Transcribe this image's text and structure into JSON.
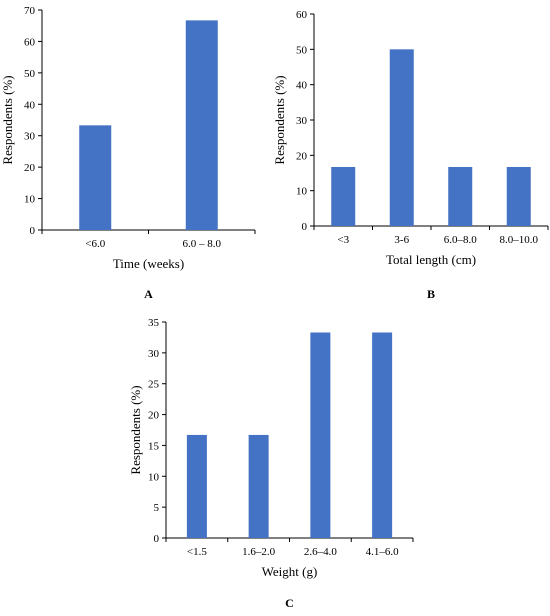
{
  "chart_data": [
    {
      "type": "bar",
      "panel_label": "A",
      "categories": [
        "<6.0",
        "6.0 – 8.0"
      ],
      "values": [
        33.3,
        66.7
      ],
      "xlabel": "Time (weeks)",
      "ylabel": "Respondents (%)",
      "ylim": [
        0,
        70
      ],
      "yticks": [
        0,
        10,
        20,
        30,
        40,
        50,
        60,
        70
      ],
      "grid": false,
      "bar_color": "#4472C4"
    },
    {
      "type": "bar",
      "panel_label": "B",
      "categories": [
        "<3",
        "3-6",
        "6.0–8.0",
        "8.0–10.0"
      ],
      "values": [
        16.7,
        50,
        16.7,
        16.7
      ],
      "xlabel": "Total length (cm)",
      "ylabel": "Respondents (%)",
      "ylim": [
        0,
        60
      ],
      "yticks": [
        0,
        10,
        20,
        30,
        40,
        50,
        60
      ],
      "grid": false,
      "bar_color": "#4472C4"
    },
    {
      "type": "bar",
      "panel_label": "C",
      "categories": [
        "<1.5",
        "1.6–2.0",
        "2.6–4.0",
        "4.1–6.0"
      ],
      "values": [
        16.7,
        16.7,
        33.3,
        33.3
      ],
      "xlabel": "Weight (g)",
      "ylabel": "Respondents (%)",
      "ylim": [
        0,
        35
      ],
      "yticks": [
        0,
        5,
        10,
        15,
        20,
        25,
        30,
        35
      ],
      "grid": false,
      "bar_color": "#4472C4"
    }
  ]
}
